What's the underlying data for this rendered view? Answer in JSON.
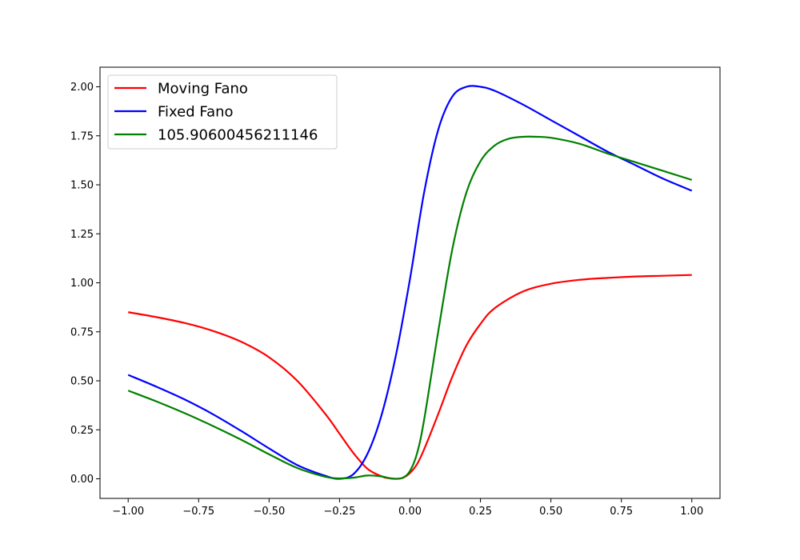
{
  "chart_data": {
    "type": "line",
    "title": "",
    "xlabel": "",
    "ylabel": "",
    "xlim": [
      -1.1,
      1.1
    ],
    "ylim": [
      -0.1,
      2.1
    ],
    "xticks": [
      -1.0,
      -0.75,
      -0.5,
      -0.25,
      0.0,
      0.25,
      0.5,
      0.75,
      1.0
    ],
    "xtick_labels": [
      "−1.00",
      "−0.75",
      "−0.50",
      "−0.25",
      "0.00",
      "0.25",
      "0.50",
      "0.75",
      "1.00"
    ],
    "yticks": [
      0.0,
      0.25,
      0.5,
      0.75,
      1.0,
      1.25,
      1.5,
      1.75,
      2.0
    ],
    "ytick_labels": [
      "0.00",
      "0.25",
      "0.50",
      "0.75",
      "1.00",
      "1.25",
      "1.50",
      "1.75",
      "2.00"
    ],
    "grid": false,
    "legend_position": "top-left",
    "series": [
      {
        "name": "Moving Fano",
        "color": "#ff0000",
        "x": [
          -1.0,
          -0.9,
          -0.8,
          -0.7,
          -0.6,
          -0.5,
          -0.4,
          -0.3,
          -0.25,
          -0.2,
          -0.15,
          -0.1,
          -0.075,
          -0.05,
          -0.025,
          0.0,
          0.025,
          0.05,
          0.1,
          0.15,
          0.2,
          0.25,
          0.3,
          0.4,
          0.5,
          0.6,
          0.7,
          0.8,
          0.9,
          1.0
        ],
        "y": [
          0.85,
          0.825,
          0.795,
          0.755,
          0.7,
          0.62,
          0.5,
          0.33,
          0.23,
          0.13,
          0.05,
          0.012,
          0.003,
          0.0,
          0.005,
          0.03,
          0.075,
          0.15,
          0.33,
          0.52,
          0.68,
          0.79,
          0.87,
          0.955,
          0.995,
          1.015,
          1.025,
          1.032,
          1.036,
          1.04
        ]
      },
      {
        "name": "Fixed Fano",
        "color": "#0000ff",
        "x": [
          -1.0,
          -0.9,
          -0.8,
          -0.7,
          -0.6,
          -0.5,
          -0.4,
          -0.3,
          -0.25,
          -0.2,
          -0.15,
          -0.1,
          -0.05,
          0.0,
          0.05,
          0.1,
          0.15,
          0.2,
          0.25,
          0.3,
          0.4,
          0.5,
          0.6,
          0.7,
          0.8,
          0.9,
          1.0
        ],
        "y": [
          0.53,
          0.47,
          0.405,
          0.33,
          0.245,
          0.155,
          0.07,
          0.015,
          0.0,
          0.025,
          0.13,
          0.33,
          0.63,
          1.02,
          1.46,
          1.78,
          1.95,
          2.0,
          2.0,
          1.98,
          1.91,
          1.83,
          1.75,
          1.67,
          1.6,
          1.53,
          1.47
        ]
      },
      {
        "name": "105.90600456211146",
        "color": "#008000",
        "x": [
          -1.0,
          -0.9,
          -0.8,
          -0.7,
          -0.6,
          -0.5,
          -0.4,
          -0.3,
          -0.25,
          -0.2,
          -0.15,
          -0.1,
          -0.075,
          -0.05,
          -0.025,
          0.0,
          0.025,
          0.05,
          0.1,
          0.15,
          0.2,
          0.25,
          0.3,
          0.35,
          0.4,
          0.45,
          0.5,
          0.6,
          0.7,
          0.8,
          0.9,
          1.0
        ],
        "y": [
          0.45,
          0.395,
          0.335,
          0.27,
          0.2,
          0.125,
          0.055,
          0.01,
          0.002,
          0.006,
          0.017,
          0.012,
          0.004,
          0.0,
          0.006,
          0.04,
          0.13,
          0.3,
          0.75,
          1.17,
          1.46,
          1.62,
          1.7,
          1.735,
          1.745,
          1.745,
          1.74,
          1.71,
          1.66,
          1.615,
          1.57,
          1.525
        ]
      }
    ]
  }
}
